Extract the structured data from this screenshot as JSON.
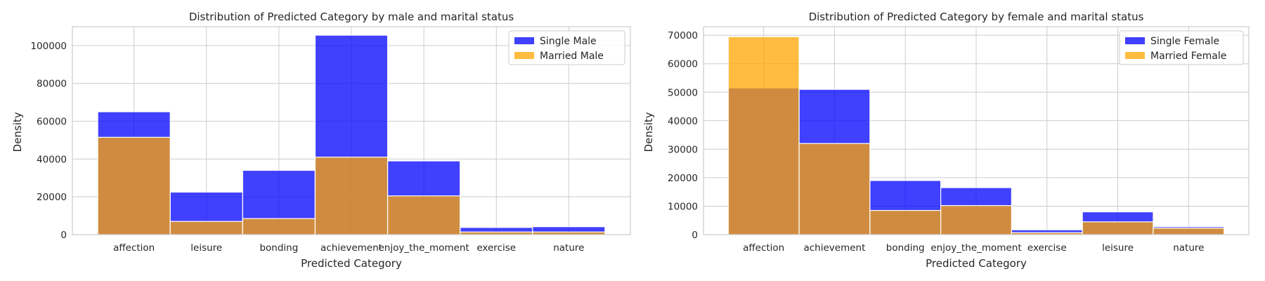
{
  "colors": {
    "series_single": "#0000ff",
    "series_married": "#ffa500",
    "grid": "#cccccc",
    "background": "#ffffff"
  },
  "chart_data": [
    {
      "type": "bar",
      "title": "Distribution of Predicted Category by male and marital status",
      "xlabel": "Predicted Category",
      "ylabel": "Density",
      "categories": [
        "affection",
        "leisure",
        "bonding",
        "achievement",
        "enjoy_the_moment",
        "exercise",
        "nature"
      ],
      "series": [
        {
          "name": "Single Male",
          "values": [
            65000,
            22500,
            34000,
            105500,
            39000,
            3800,
            4200
          ]
        },
        {
          "name": "Married Male",
          "values": [
            51500,
            7000,
            8500,
            41000,
            20500,
            1400,
            1400
          ]
        }
      ],
      "yticks": [
        0,
        20000,
        40000,
        60000,
        80000,
        100000
      ],
      "ylim": [
        0,
        110000
      ],
      "grid": true,
      "legend": "top-right"
    },
    {
      "type": "bar",
      "title": "Distribution of Predicted Category by female and marital status",
      "xlabel": "Predicted Category",
      "ylabel": "Density",
      "categories": [
        "affection",
        "achievement",
        "bonding",
        "enjoy_the_moment",
        "exercise",
        "leisure",
        "nature"
      ],
      "series": [
        {
          "name": "Single Female",
          "values": [
            51500,
            51000,
            19000,
            16500,
            1700,
            8000,
            2800
          ]
        },
        {
          "name": "Married Female",
          "values": [
            69500,
            32000,
            8500,
            10200,
            700,
            4500,
            2300
          ]
        }
      ],
      "yticks": [
        0,
        10000,
        20000,
        30000,
        40000,
        50000,
        60000,
        70000
      ],
      "ylim": [
        0,
        73000
      ],
      "grid": true,
      "legend": "top-right"
    }
  ]
}
